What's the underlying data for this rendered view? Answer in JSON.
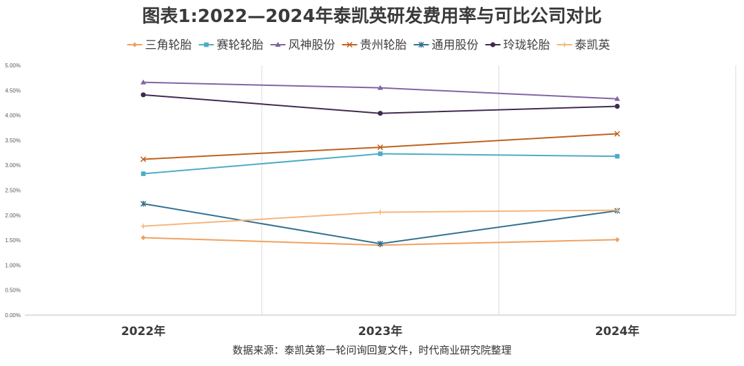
{
  "chart_data": {
    "type": "line",
    "title": "图表1:2022—2024年泰凯英研发费用率与可比公司对比",
    "categories": [
      "2022年",
      "2023年",
      "2024年"
    ],
    "ylim": [
      0,
      0.05
    ],
    "yticks": [
      "0.00%",
      "0.50%",
      "1.00%",
      "1.50%",
      "2.00%",
      "2.50%",
      "3.00%",
      "3.50%",
      "4.00%",
      "4.50%",
      "5.00%"
    ],
    "legend_position": "top",
    "series": [
      {
        "name": "三角轮胎",
        "values": [
          0.0155,
          0.014,
          0.0151
        ],
        "color": "#f0a060",
        "marker": "diamond"
      },
      {
        "name": "赛轮轮胎",
        "values": [
          0.0283,
          0.0323,
          0.0318
        ],
        "color": "#4bacc6",
        "marker": "square"
      },
      {
        "name": "风神股份",
        "values": [
          0.0466,
          0.0455,
          0.0433
        ],
        "color": "#8064a2",
        "marker": "triangle"
      },
      {
        "name": "贵州轮胎",
        "values": [
          0.0312,
          0.0336,
          0.0363
        ],
        "color": "#c0601a",
        "marker": "x"
      },
      {
        "name": "通用股份",
        "values": [
          0.0223,
          0.0143,
          0.0209
        ],
        "color": "#31708f",
        "marker": "star"
      },
      {
        "name": "玲珑轮胎",
        "values": [
          0.0441,
          0.0404,
          0.0418
        ],
        "color": "#3f2a4f",
        "marker": "circle"
      },
      {
        "name": "泰凯英",
        "values": [
          0.0178,
          0.0206,
          0.021
        ],
        "color": "#f5b57a",
        "marker": "plus"
      }
    ],
    "source": "数据来源：泰凯英第一轮问询回复文件，时代商业研究院整理"
  }
}
